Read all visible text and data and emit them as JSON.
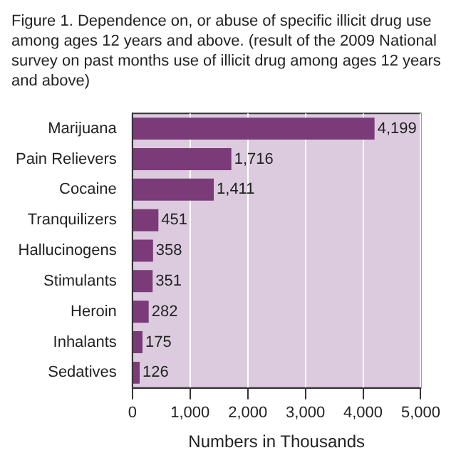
{
  "chart_data": {
    "type": "bar",
    "orientation": "horizontal",
    "title": "Figure 1. Dependence on, or abuse of specific illicit drug use among ages 12 years and above. (result of the 2009 National survey on past months use of illicit drug among ages 12 years and above)",
    "xlabel": "Numbers in Thousands",
    "categories": [
      "Marijuana",
      "Pain Relievers",
      "Cocaine",
      "Tranquilizers",
      "Hallucinogens",
      "Stimulants",
      "Heroin",
      "Inhalants",
      "Sedatives"
    ],
    "values": [
      4199,
      1716,
      1411,
      451,
      358,
      351,
      282,
      175,
      126
    ],
    "value_labels": [
      "4,199",
      "1,716",
      "1,411",
      "451",
      "358",
      "351",
      "282",
      "175",
      "126"
    ],
    "color": "#7a3b78",
    "xlim": [
      0,
      5000
    ],
    "xticks": [
      0,
      {
        "value": 1000,
        "label": "1,000"
      },
      {
        "value": 2000,
        "label": "2,000"
      },
      {
        "value": 3000,
        "label": "3,000"
      },
      {
        "value": 4000,
        "label": "4,000"
      },
      {
        "value": 5000,
        "label": "5,000"
      }
    ],
    "grid": "x"
  }
}
